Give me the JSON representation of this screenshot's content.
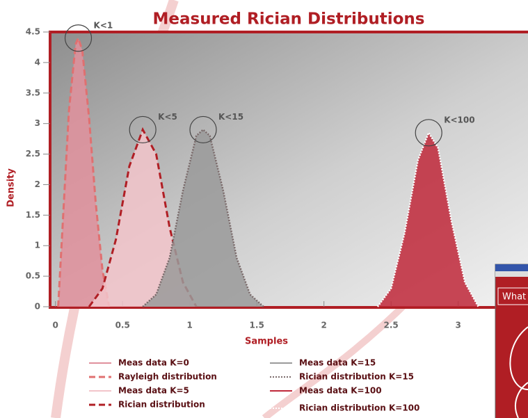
{
  "chart_data": {
    "type": "area",
    "title": "Measured Rician Distributions",
    "x_label": "Samples",
    "y_label": "Density",
    "xlim": [
      -0.04,
      3.52
    ],
    "ylim": [
      0,
      4.5
    ],
    "xticks": [
      0,
      0.5,
      1,
      1.5,
      2,
      2.5,
      3
    ],
    "yticks": [
      0,
      0.5,
      1,
      1.5,
      2,
      2.5,
      3,
      3.5,
      4,
      4.5
    ],
    "series": [
      {
        "name": "Meas data K=0",
        "color": "#e0909c",
        "style": "area",
        "x": [
          0.02,
          0.05,
          0.1,
          0.15,
          0.17,
          0.2,
          0.25,
          0.3,
          0.35,
          0.4
        ],
        "values": [
          0,
          1.2,
          3.2,
          4.3,
          4.4,
          4.2,
          3.1,
          1.7,
          0.6,
          0
        ]
      },
      {
        "name": "Rayleigh distribution",
        "color": "#e07070",
        "style": "dashed",
        "x": [
          0.02,
          0.05,
          0.1,
          0.15,
          0.17,
          0.2,
          0.25,
          0.3,
          0.35,
          0.4
        ],
        "values": [
          0,
          1.2,
          3.2,
          4.3,
          4.4,
          4.2,
          3.1,
          1.7,
          0.6,
          0
        ]
      },
      {
        "name": "Meas data K=5",
        "color": "#f2c4ca",
        "style": "area",
        "x": [
          0.25,
          0.35,
          0.45,
          0.55,
          0.65,
          0.75,
          0.85,
          0.95,
          1.05
        ],
        "values": [
          0,
          0.3,
          1.1,
          2.3,
          2.9,
          2.5,
          1.3,
          0.4,
          0
        ]
      },
      {
        "name": "Rician distribution",
        "color": "#b01e24",
        "style": "dashed",
        "x": [
          0.25,
          0.35,
          0.45,
          0.55,
          0.65,
          0.75,
          0.85,
          0.95,
          1.05
        ],
        "values": [
          0,
          0.3,
          1.1,
          2.3,
          2.9,
          2.5,
          1.3,
          0.4,
          0
        ]
      },
      {
        "name": "Meas data K=15",
        "color": "#9a9a9a",
        "style": "area",
        "x": [
          0.65,
          0.75,
          0.85,
          0.95,
          1.05,
          1.1,
          1.15,
          1.25,
          1.35,
          1.45,
          1.55
        ],
        "values": [
          0,
          0.2,
          0.8,
          1.9,
          2.8,
          2.9,
          2.8,
          1.9,
          0.8,
          0.2,
          0
        ]
      },
      {
        "name": "Rician distribution K=15",
        "color": "#7a6a6a",
        "style": "dotted",
        "x": [
          0.65,
          0.75,
          0.85,
          0.95,
          1.05,
          1.1,
          1.15,
          1.25,
          1.35,
          1.45,
          1.55
        ],
        "values": [
          0,
          0.2,
          0.8,
          1.9,
          2.8,
          2.9,
          2.8,
          1.9,
          0.8,
          0.2,
          0
        ]
      },
      {
        "name": "Meas data K=100",
        "color": "#c0283a",
        "style": "area",
        "x": [
          2.4,
          2.5,
          2.6,
          2.7,
          2.78,
          2.85,
          2.95,
          3.05,
          3.15
        ],
        "values": [
          0,
          0.3,
          1.2,
          2.4,
          2.85,
          2.6,
          1.4,
          0.4,
          0
        ]
      },
      {
        "name": "Rician distribution K=100",
        "color": "#ffffff",
        "style": "dotted",
        "x": [
          2.4,
          2.5,
          2.6,
          2.7,
          2.78,
          2.85,
          2.95,
          3.05,
          3.15
        ],
        "values": [
          0,
          0.3,
          1.2,
          2.4,
          2.85,
          2.6,
          1.4,
          0.4,
          0
        ]
      }
    ],
    "annotations": [
      {
        "text": "K<1",
        "x": 0.17,
        "y": 4.4
      },
      {
        "text": "K<5",
        "x": 0.65,
        "y": 2.9
      },
      {
        "text": "K<15",
        "x": 1.1,
        "y": 2.9
      },
      {
        "text": "K<100",
        "x": 2.78,
        "y": 2.85
      }
    ]
  },
  "inset_text": "What"
}
